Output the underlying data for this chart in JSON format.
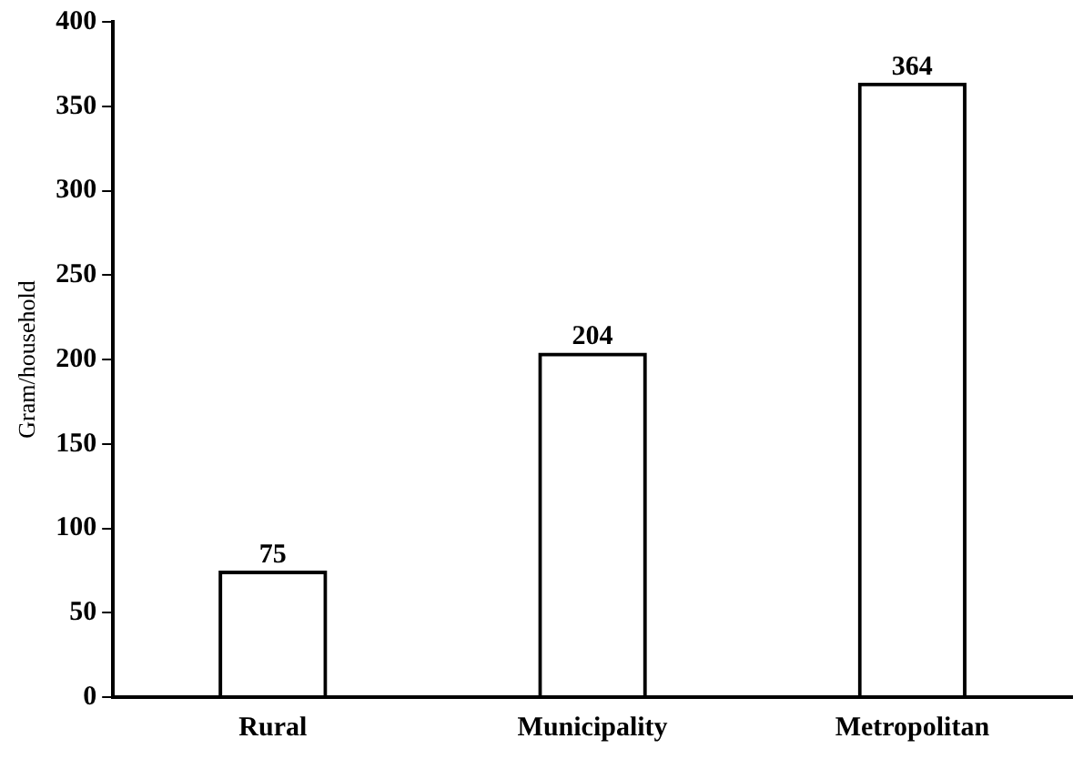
{
  "chart_data": {
    "type": "bar",
    "ylabel": "Gram/household",
    "categories": [
      "Rural",
      "Municipality",
      "Metropolitan"
    ],
    "values": [
      75,
      204,
      364
    ],
    "data_labels": true,
    "color": "#000000",
    "ylim": [
      0,
      400
    ],
    "yticks": [
      0,
      50,
      100,
      150,
      200,
      250,
      300,
      350,
      400
    ],
    "grid": false,
    "legend": false
  }
}
